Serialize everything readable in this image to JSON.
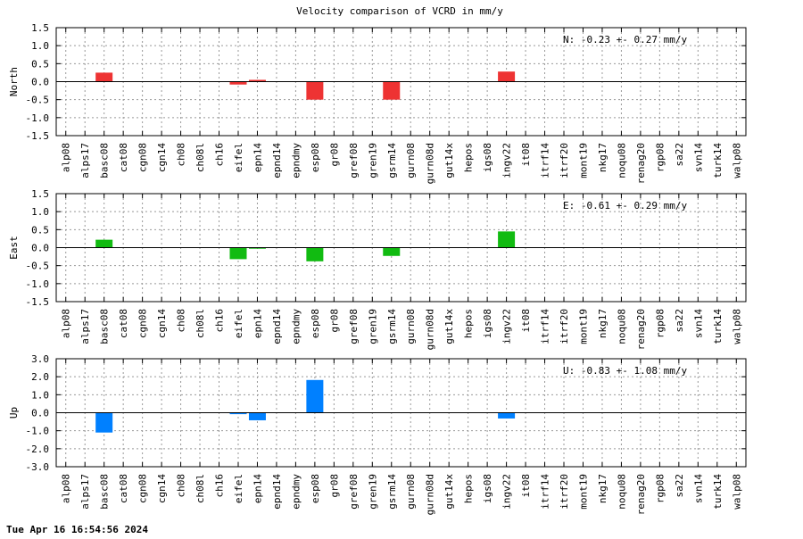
{
  "title": "Velocity comparison of VCRD in mm/y",
  "timestamp": "Tue Apr 16 16:54:56 2024",
  "chart_data": {
    "type": "bar",
    "categories": [
      "alp08",
      "alps17",
      "basc08",
      "cat08",
      "cgn08",
      "cgn14",
      "ch08",
      "ch08l",
      "ch16",
      "eifel",
      "epn14",
      "epnd14",
      "epndmy",
      "esp08",
      "gr08",
      "gref08",
      "gren19",
      "gsrm14",
      "gurn08",
      "gurn08d",
      "gut14x",
      "hepos",
      "igs08",
      "ingv22",
      "it08",
      "itrf14",
      "itrf20",
      "mont19",
      "nkg17",
      "noqu08",
      "renag20",
      "rgp08",
      "sa22",
      "svn14",
      "turk14",
      "walp08"
    ],
    "panels": [
      {
        "ylabel": "North",
        "annotation": "N:  -0.23 +-  0.27 mm/y",
        "color": "#ee3333",
        "ylim": [
          -1.5,
          1.5
        ],
        "yticks": [
          "1.5",
          "1.0",
          "0.5",
          "0.0",
          "-0.5",
          "-1.0",
          "-1.5"
        ],
        "ytick_values": [
          1.5,
          1.0,
          0.5,
          0.0,
          -0.5,
          -1.0,
          -1.5
        ],
        "values": [
          0,
          0,
          0.25,
          0,
          0,
          0,
          0,
          0,
          0,
          -0.08,
          0.05,
          0,
          0,
          -0.5,
          0,
          0,
          0,
          -0.5,
          0,
          0,
          0,
          0,
          0,
          0.28,
          0,
          0,
          0,
          0,
          0,
          0,
          0,
          0,
          0,
          0,
          0,
          0
        ]
      },
      {
        "ylabel": "East",
        "annotation": "E:  -0.61 +-  0.29 mm/y",
        "color": "#11bb11",
        "ylim": [
          -1.5,
          1.5
        ],
        "yticks": [
          "1.5",
          "1.0",
          "0.5",
          "0.0",
          "-0.5",
          "-1.0",
          "-1.5"
        ],
        "ytick_values": [
          1.5,
          1.0,
          0.5,
          0.0,
          -0.5,
          -1.0,
          -1.5
        ],
        "values": [
          0,
          0,
          0.22,
          0,
          0,
          0,
          0,
          0,
          0,
          -0.32,
          -0.03,
          0,
          0,
          -0.38,
          0,
          0,
          0,
          -0.23,
          0,
          0,
          0,
          0,
          0,
          0.45,
          0,
          0,
          0,
          0,
          0,
          0,
          0,
          0,
          0,
          0,
          0,
          0
        ]
      },
      {
        "ylabel": "Up",
        "annotation": "U:  -0.83 +-  1.08 mm/y",
        "color": "#0080ff",
        "ylim": [
          -3.0,
          3.0
        ],
        "yticks": [
          "3.0",
          "2.0",
          "1.0",
          "0.0",
          "-1.0",
          "-2.0",
          "-3.0"
        ],
        "ytick_values": [
          3.0,
          2.0,
          1.0,
          0.0,
          -1.0,
          -2.0,
          -3.0
        ],
        "values": [
          0,
          0,
          -1.1,
          0,
          0,
          0,
          0,
          0,
          0,
          -0.08,
          -0.42,
          0,
          0,
          1.82,
          0,
          0,
          0,
          0,
          0,
          0,
          0,
          0,
          0,
          -0.32,
          0,
          0,
          0,
          0,
          0,
          0,
          0,
          0,
          0,
          0,
          0,
          0
        ]
      }
    ],
    "grid": true
  }
}
